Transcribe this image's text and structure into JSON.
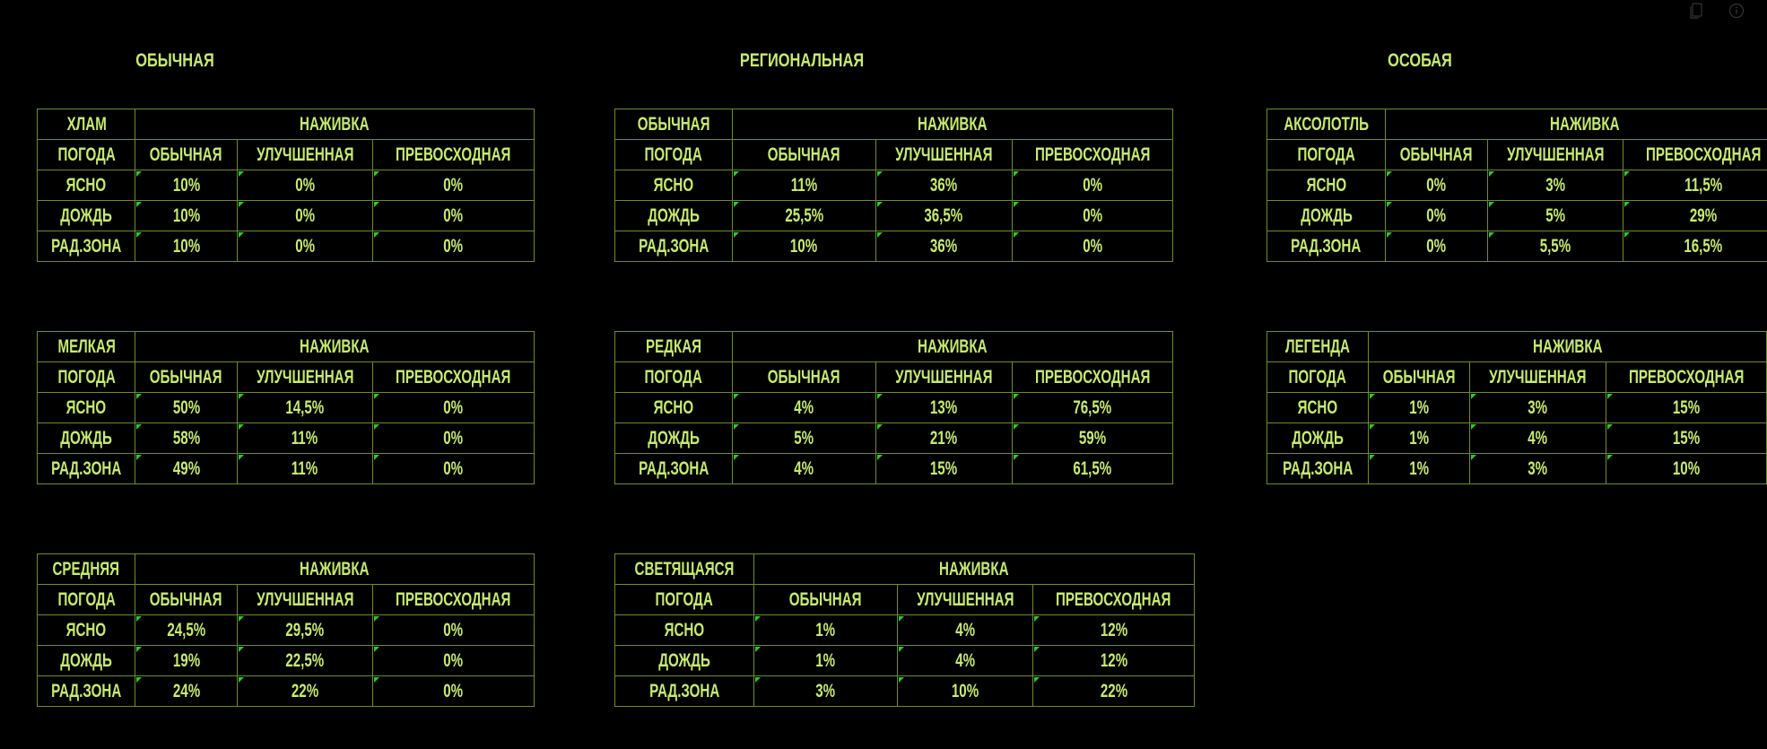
{
  "headings": [
    "ОБЫЧНАЯ",
    "РЕГИОНАЛЬНАЯ",
    "ОСОБАЯ"
  ],
  "bait_label": "НАЖИВКА",
  "weather_label": "ПОГОДА",
  "bait_types": [
    "ОБЫЧНАЯ",
    "УЛУЧШЕННАЯ",
    "ПРЕВОСХОДНАЯ"
  ],
  "weather": [
    "ЯСНО",
    "ДОЖДЬ",
    "РАД.ЗОНА"
  ],
  "tables": [
    {
      "name": "ХЛАМ",
      "rows": [
        [
          "10%",
          "0%",
          "0%"
        ],
        [
          "10%",
          "0%",
          "0%"
        ],
        [
          "10%",
          "0%",
          "0%"
        ]
      ]
    },
    {
      "name": "МЕЛКАЯ",
      "rows": [
        [
          "50%",
          "14,5%",
          "0%"
        ],
        [
          "58%",
          "11%",
          "0%"
        ],
        [
          "49%",
          "11%",
          "0%"
        ]
      ]
    },
    {
      "name": "СРЕДНЯЯ",
      "rows": [
        [
          "24,5%",
          "29,5%",
          "0%"
        ],
        [
          "19%",
          "22,5%",
          "0%"
        ],
        [
          "24%",
          "22%",
          "0%"
        ]
      ]
    },
    {
      "name": "ОБЫЧНАЯ",
      "rows": [
        [
          "11%",
          "36%",
          "0%"
        ],
        [
          "25,5%",
          "36,5%",
          "0%"
        ],
        [
          "10%",
          "36%",
          "0%"
        ]
      ]
    },
    {
      "name": "РЕДКАЯ",
      "rows": [
        [
          "4%",
          "13%",
          "76,5%"
        ],
        [
          "5%",
          "21%",
          "59%"
        ],
        [
          "4%",
          "15%",
          "61,5%"
        ]
      ]
    },
    {
      "name": "СВЕТЯЩАЯСЯ",
      "rows": [
        [
          "1%",
          "4%",
          "12%"
        ],
        [
          "1%",
          "4%",
          "12%"
        ],
        [
          "3%",
          "10%",
          "22%"
        ]
      ]
    },
    {
      "name": "АКСОЛОТЛЬ",
      "rows": [
        [
          "0%",
          "3%",
          "11,5%"
        ],
        [
          "0%",
          "5%",
          "29%"
        ],
        [
          "0%",
          "5,5%",
          "16,5%"
        ]
      ]
    },
    {
      "name": "ЛЕГЕНДА",
      "rows": [
        [
          "1%",
          "3%",
          "15%"
        ],
        [
          "1%",
          "4%",
          "15%"
        ],
        [
          "1%",
          "3%",
          "10%"
        ]
      ]
    }
  ]
}
